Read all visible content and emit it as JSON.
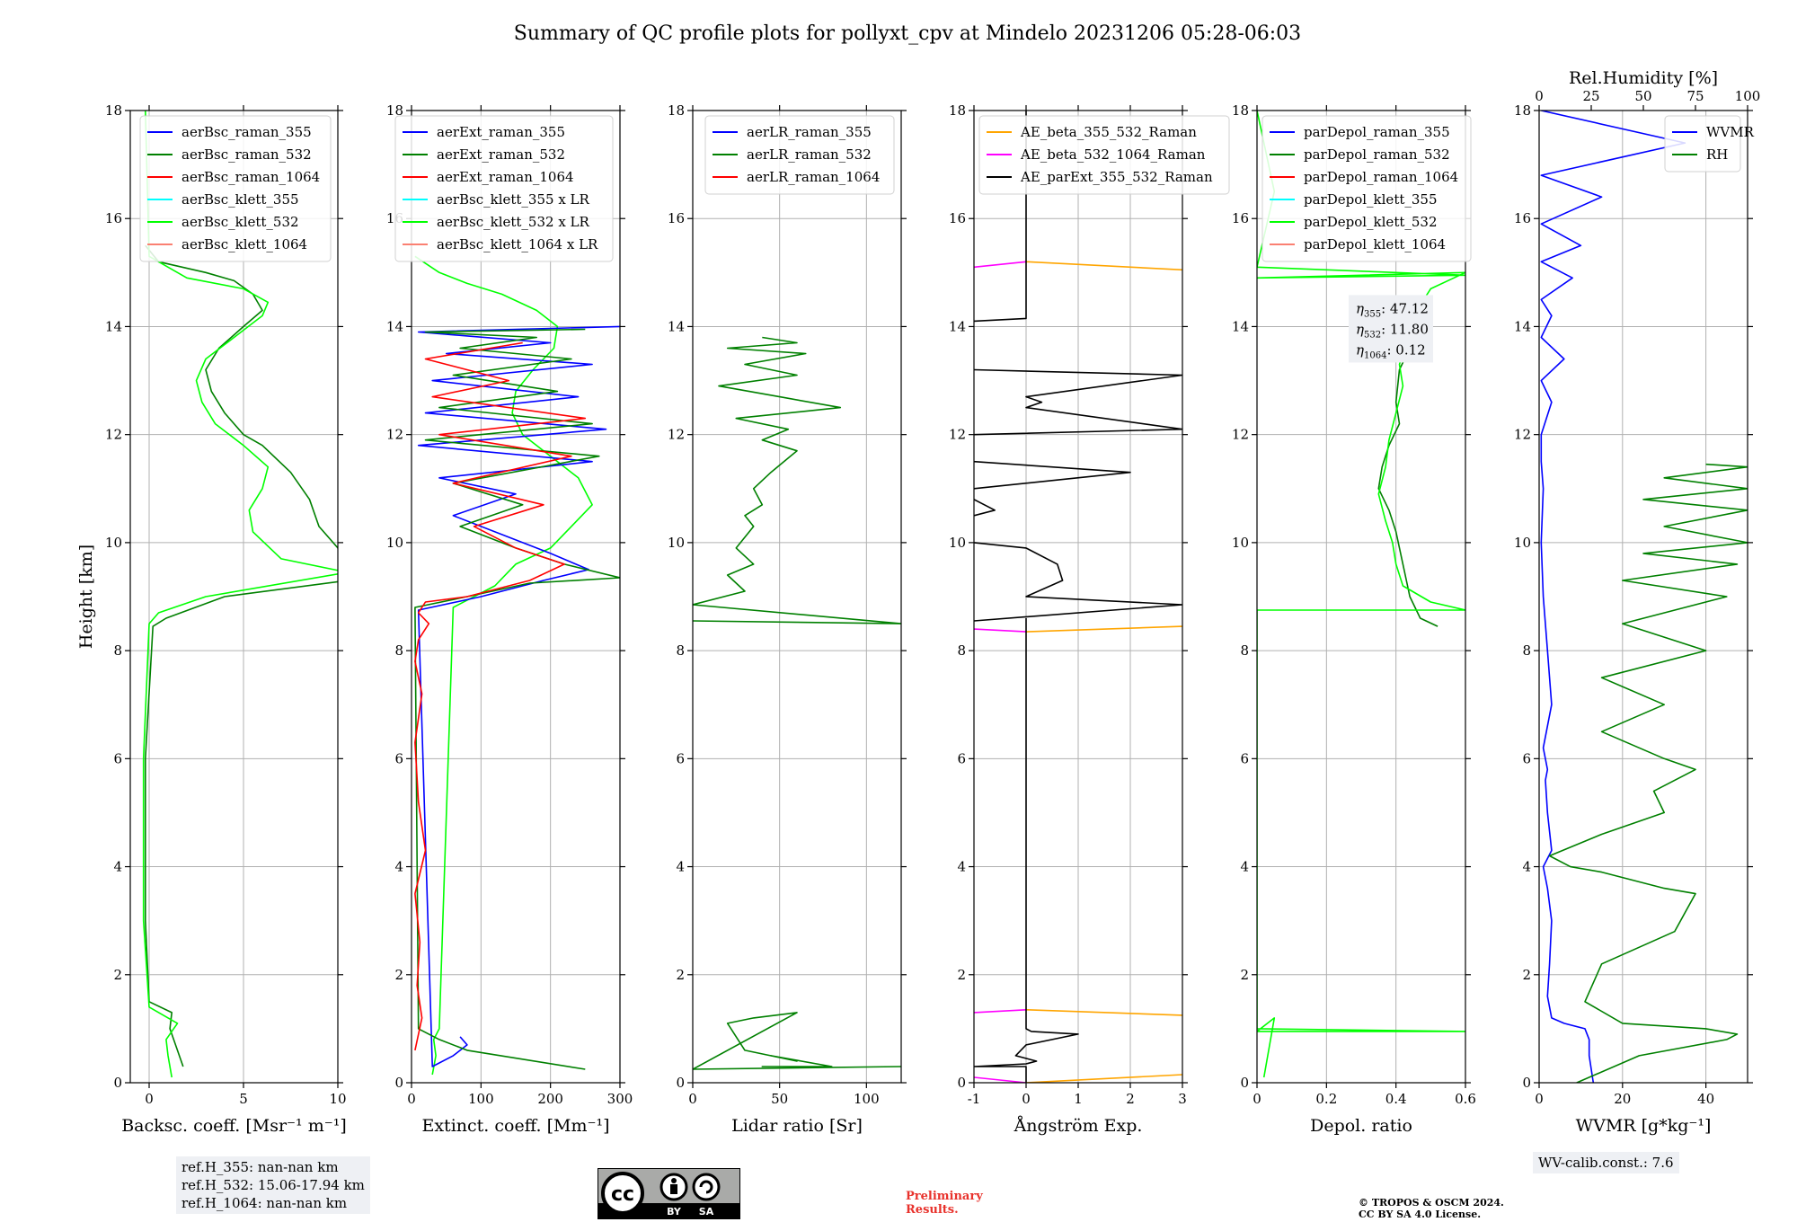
{
  "title": "Summary of QC profile plots for pollyxt_cpv at Mindelo 20231206 05:28-06:03",
  "colors": {
    "blue": "#0000ff",
    "green": "#008000",
    "red": "#ff0000",
    "cyan": "#00ffff",
    "lime": "#00ff00",
    "salmon": "#fa8072",
    "orange": "#ffa500",
    "magenta": "#ff00ff",
    "black": "#000000",
    "grid": "#b0b0b0",
    "prelim": "#e8322c",
    "notebox": "#eef0f4"
  },
  "notes": {
    "ref_heights": [
      "ref.H_355: nan-nan km",
      "ref.H_532: 15.06-17.94 km",
      "ref.H_1064: nan-nan km"
    ],
    "wv_calib": "WV-calib.const.: 7.6",
    "preliminary": [
      "Preliminary",
      "Results."
    ],
    "copyright": [
      "© TROPOS & OSCM 2024.",
      "CC BY SA 4.0 License."
    ],
    "cc_logo": {
      "icon": "cc-by-sa-license-icon",
      "labels": [
        "cc",
        "BY",
        "SA"
      ]
    }
  },
  "chart_data": [
    {
      "type": "line",
      "xlabel": "Backsc. coeff. [Msr⁻¹ m⁻¹]",
      "ylabel": "Height [km]",
      "xlim": [
        -1,
        10
      ],
      "ylim": [
        0,
        18
      ],
      "xticks": [
        0,
        5,
        10
      ],
      "yticks": [
        0,
        2,
        4,
        6,
        8,
        10,
        12,
        14,
        16,
        18
      ],
      "grid": true,
      "legend": "top-right",
      "legend_entries": [
        "aerBsc_raman_355",
        "aerBsc_raman_532",
        "aerBsc_raman_1064",
        "aerBsc_klett_355",
        "aerBsc_klett_532",
        "aerBsc_klett_1064"
      ],
      "series": [
        {
          "name": "aerBsc_raman_532",
          "color": "green",
          "x": [
            1.8,
            1.4,
            1.1,
            1.2,
            0.0,
            -0.2,
            -0.2,
            0.2,
            0.9,
            4,
            10.5,
            10,
            9,
            8.5,
            7.5,
            6,
            5,
            4,
            3.3,
            3,
            3.7,
            5,
            6,
            5.5,
            4.5,
            3,
            0.5,
            -0.2
          ],
          "y": [
            0.3,
            0.7,
            1.0,
            1.3,
            1.5,
            3,
            6,
            8.45,
            8.6,
            9.0,
            9.3,
            9.9,
            10.3,
            10.8,
            11.3,
            11.8,
            12.0,
            12.4,
            12.8,
            13.2,
            13.6,
            14.0,
            14.3,
            14.6,
            14.85,
            15.0,
            15.2,
            15.5
          ]
        },
        {
          "name": "aerBsc_klett_532",
          "color": "lime",
          "x": [
            1.2,
            1.0,
            0.9,
            1.5,
            0.0,
            -0.3,
            -0.3,
            0.0,
            0.5,
            3,
            10.5,
            7,
            5.5,
            5.3,
            6.0,
            6.3,
            5.0,
            3.5,
            2.8,
            2.5,
            3.0,
            4.5,
            6.0,
            6.3,
            5.0,
            2.0,
            0.0,
            -0.2
          ],
          "y": [
            0.1,
            0.5,
            0.8,
            1.1,
            1.4,
            3,
            6,
            8.5,
            8.7,
            9.0,
            9.45,
            9.7,
            10.2,
            10.6,
            11.0,
            11.4,
            11.8,
            12.2,
            12.6,
            13.0,
            13.4,
            13.8,
            14.2,
            14.45,
            14.7,
            14.9,
            15.3,
            18
          ]
        }
      ]
    },
    {
      "type": "line",
      "xlabel": "Extinct. coeff. [Mm⁻¹]",
      "xlim": [
        0,
        300
      ],
      "ylim": [
        0,
        18
      ],
      "xticks": [
        0,
        100,
        200,
        300
      ],
      "yticks": [
        0,
        2,
        4,
        6,
        8,
        10,
        12,
        14,
        16,
        18
      ],
      "grid": true,
      "legend": "top-right",
      "legend_entries": [
        "aerExt_raman_355",
        "aerExt_raman_532",
        "aerExt_raman_1064",
        "aerBsc_klett_355 x LR",
        "aerBsc_klett_532 x LR",
        "aerBsc_klett_1064 x LR"
      ],
      "series": [
        {
          "name": "aerBsc_klett_532 x LR",
          "color": "lime",
          "x": [
            30,
            35,
            32,
            40,
            60,
            120,
            150,
            200,
            230,
            260,
            240,
            200,
            160,
            145,
            150,
            175,
            205,
            210,
            180,
            130,
            80,
            40,
            5
          ],
          "y": [
            0.15,
            0.5,
            0.8,
            1.0,
            8.8,
            9.2,
            9.6,
            9.9,
            10.3,
            10.7,
            11.2,
            11.6,
            12.0,
            12.4,
            12.8,
            13.2,
            13.6,
            14.0,
            14.3,
            14.6,
            14.8,
            15.0,
            15.3
          ]
        },
        {
          "name": "aerExt_raman_355",
          "color": "blue",
          "x": [
            70,
            80,
            60,
            30,
            10,
            100,
            190,
            255,
            200,
            140,
            60,
            150,
            40,
            260,
            10,
            280,
            20,
            240,
            30,
            260,
            50,
            200,
            10,
            300
          ],
          "y": [
            0.85,
            0.7,
            0.5,
            0.3,
            8.75,
            9.0,
            9.3,
            9.5,
            9.8,
            10.1,
            10.5,
            10.9,
            11.2,
            11.5,
            11.8,
            12.1,
            12.4,
            12.7,
            13.0,
            13.3,
            13.5,
            13.7,
            13.9,
            14.0
          ]
        },
        {
          "name": "aerExt_raman_532",
          "color": "green",
          "x": [
            250,
            80,
            40,
            10,
            5,
            80,
            170,
            300,
            220,
            150,
            70,
            160,
            60,
            270,
            20,
            260,
            40,
            210,
            60,
            230,
            70,
            180,
            20,
            250
          ],
          "y": [
            0.25,
            0.6,
            0.8,
            1.0,
            8.8,
            9.0,
            9.25,
            9.35,
            9.6,
            9.9,
            10.3,
            10.7,
            11.1,
            11.6,
            11.9,
            12.2,
            12.5,
            12.8,
            13.1,
            13.4,
            13.6,
            13.8,
            13.9,
            13.95
          ]
        },
        {
          "name": "aerExt_raman_1064",
          "color": "red",
          "x": [
            5,
            15,
            8,
            12,
            5,
            20,
            10,
            5,
            15,
            5,
            10,
            25,
            10,
            20,
            80,
            170,
            220,
            150,
            90,
            190,
            60,
            230,
            40,
            250,
            30,
            140,
            20,
            160
          ],
          "y": [
            0.6,
            1.2,
            1.8,
            2.6,
            3.5,
            4.3,
            5.2,
            6.3,
            7.2,
            7.8,
            8.2,
            8.5,
            8.7,
            8.9,
            9.0,
            9.3,
            9.6,
            9.9,
            10.3,
            10.7,
            11.1,
            11.6,
            12.0,
            12.3,
            12.7,
            13.0,
            13.4,
            13.7
          ]
        }
      ]
    },
    {
      "type": "line",
      "xlabel": "Lidar ratio [Sr]",
      "xlim": [
        0,
        120
      ],
      "ylim": [
        0,
        18
      ],
      "xticks": [
        0,
        50,
        100
      ],
      "yticks": [
        0,
        2,
        4,
        6,
        8,
        10,
        12,
        14,
        16,
        18
      ],
      "grid": true,
      "legend": "top-right",
      "legend_entries": [
        "aerLR_raman_355",
        "aerLR_raman_532",
        "aerLR_raman_1064"
      ],
      "series": [
        {
          "name": "aerLR_raman_532",
          "color": "green",
          "x": [
            120,
            0,
            60,
            35,
            20,
            30,
            60,
            45,
            80,
            60,
            40,
            45
          ],
          "y": [
            0.3,
            0.25,
            1.3,
            1.2,
            1.1,
            0.6,
            0.4,
            0.5,
            0.3,
            0.3,
            0.3,
            0.3
          ]
        },
        {
          "name": "aerLR_raman_532_upper",
          "color": "green",
          "x": [
            0,
            120,
            0,
            30,
            20,
            35,
            25,
            35,
            30,
            40,
            35,
            45,
            60,
            40,
            55,
            25,
            85,
            50,
            15,
            60,
            30,
            65,
            20,
            60,
            40
          ],
          "y": [
            8.55,
            8.5,
            8.85,
            9.1,
            9.4,
            9.6,
            9.9,
            10.3,
            10.5,
            10.7,
            11.0,
            11.3,
            11.7,
            11.9,
            12.1,
            12.3,
            12.5,
            12.7,
            12.9,
            13.1,
            13.3,
            13.5,
            13.6,
            13.7,
            13.8
          ]
        }
      ]
    },
    {
      "type": "line",
      "xlabel": "Ångström Exp.",
      "xlim": [
        -1,
        3
      ],
      "ylim": [
        0,
        18
      ],
      "xticks": [
        -1,
        0,
        1,
        2,
        3
      ],
      "yticks": [
        0,
        2,
        4,
        6,
        8,
        10,
        12,
        14,
        16,
        18
      ],
      "grid": true,
      "legend": "top-left",
      "legend_entries": [
        "AE_beta_355_532_Raman",
        "AE_beta_532_1064_Raman",
        "AE_parExt_355_532_Raman"
      ],
      "series": [
        {
          "name": "AE_beta_355_532_Raman",
          "color": "orange",
          "x": [
            0,
            3,
            null,
            0,
            3,
            null,
            0,
            3,
            null,
            0,
            3
          ],
          "y": [
            0.0,
            0.15,
            null,
            1.35,
            1.25,
            null,
            8.35,
            8.45,
            null,
            15.2,
            15.05
          ]
        },
        {
          "name": "AE_beta_532_1064_Raman",
          "color": "magenta",
          "x": [
            -1,
            0,
            null,
            -1,
            0,
            null,
            -1,
            0,
            null,
            -1,
            0
          ],
          "y": [
            0.1,
            0.0,
            null,
            1.3,
            1.35,
            null,
            8.4,
            8.35,
            null,
            15.1,
            15.2
          ]
        },
        {
          "name": "AE_parExt_355_532_Raman",
          "color": "black",
          "x": [
            0,
            0,
            -1,
            0,
            0.2,
            -0.2,
            0.0,
            1.0,
            0.1,
            0,
            0,
            0,
            null,
            -1,
            3,
            0,
            0.7,
            0.6,
            0.0,
            -1,
            null,
            -1,
            -0.6,
            -1,
            null,
            -1,
            2.0,
            -1,
            null,
            -1,
            3,
            0,
            0.3,
            0,
            3,
            -1,
            null,
            -1,
            0,
            0,
            0
          ],
          "y": [
            0.0,
            0.3,
            0.3,
            0.35,
            0.4,
            0.5,
            0.7,
            0.9,
            0.95,
            1.0,
            8.55,
            8.6,
            null,
            8.55,
            8.85,
            9.0,
            9.3,
            9.6,
            9.9,
            10.0,
            null,
            10.5,
            10.6,
            10.8,
            null,
            11.5,
            11.3,
            11.0,
            null,
            12.0,
            12.1,
            12.5,
            12.6,
            12.7,
            13.1,
            13.2,
            null,
            14.1,
            14.15,
            14.5,
            18
          ]
        }
      ]
    },
    {
      "type": "line",
      "xlabel": "Depol. ratio",
      "xlim": [
        0,
        0.6
      ],
      "ylim": [
        0,
        18
      ],
      "xticks": [
        0.0,
        0.2,
        0.4,
        0.6
      ],
      "yticks": [
        0,
        2,
        4,
        6,
        8,
        10,
        12,
        14,
        16,
        18
      ],
      "grid": true,
      "legend": "top-left",
      "legend_entries": [
        "parDepol_raman_355",
        "parDepol_raman_532",
        "parDepol_raman_1064",
        "parDepol_klett_355",
        "parDepol_klett_532",
        "parDepol_klett_1064"
      ],
      "annotation": [
        {
          "symbol": "η",
          "sub": "355",
          "value": ": 47.12"
        },
        {
          "symbol": "η",
          "sub": "532",
          "value": ": 11.80"
        },
        {
          "symbol": "η",
          "sub": "1064",
          "value": ": 0.12"
        }
      ],
      "series": [
        {
          "name": "parDepol_raman_532",
          "color": "green",
          "x": [
            0.52,
            0.47,
            0.44,
            0.42,
            0.4,
            0.38,
            0.35,
            0.36,
            0.38,
            0.41,
            0.4,
            0.41,
            0.44,
            0.46
          ],
          "y": [
            8.45,
            8.6,
            9.0,
            9.6,
            10.2,
            10.6,
            11.0,
            11.4,
            11.8,
            12.2,
            12.6,
            13.2,
            13.6,
            14.0
          ]
        },
        {
          "name": "parDepol_klett_532",
          "color": "lime",
          "x": [
            0.02,
            0.05,
            0.0,
            0.6,
            0.0,
            0.0,
            0.6,
            0.5,
            0.42,
            0.4,
            0.39,
            0.37,
            0.35,
            0.37,
            0.38,
            0.4,
            0.42,
            0.41,
            0.43,
            0.45,
            0.47,
            0.5,
            0.6,
            0.0,
            0.6,
            0.0,
            0.05,
            0.0
          ],
          "y": [
            0.1,
            1.2,
            0.95,
            0.95,
            1.0,
            8.75,
            8.75,
            8.9,
            9.2,
            9.6,
            10.0,
            10.4,
            10.9,
            11.4,
            11.9,
            12.4,
            12.9,
            13.3,
            13.7,
            14.1,
            14.4,
            14.7,
            15.0,
            14.9,
            14.95,
            15.1,
            16.5,
            18
          ]
        }
      ]
    },
    {
      "type": "line",
      "xlabel": "WVMR [g*kg⁻¹]",
      "x2label": "Rel.Humidity [%]",
      "xlim": [
        0,
        50
      ],
      "x2lim": [
        0,
        100
      ],
      "ylim": [
        0,
        18
      ],
      "xticks": [
        0,
        20,
        40
      ],
      "x2ticks": [
        0,
        25,
        50,
        75,
        100
      ],
      "yticks": [
        0,
        2,
        4,
        6,
        8,
        10,
        12,
        14,
        16,
        18
      ],
      "grid": true,
      "legend": "top-right",
      "legend_entries": [
        "WVMR",
        "RH"
      ],
      "series": [
        {
          "name": "WVMR",
          "color": "blue",
          "x": [
            13,
            12,
            12,
            11,
            6,
            3,
            2,
            2.5,
            3,
            2,
            1,
            3,
            2,
            1.5,
            2,
            1,
            3,
            2,
            1,
            0.5,
            1,
            0.5,
            0.5,
            3,
            0.5,
            6,
            0.5,
            3,
            0.5,
            8,
            0.5,
            10,
            0.5,
            15,
            0.5,
            35,
            0.5
          ],
          "y": [
            0,
            0.5,
            0.8,
            1.0,
            1.1,
            1.2,
            1.6,
            2.2,
            3.0,
            3.6,
            4.0,
            4.3,
            5.0,
            5.6,
            5.8,
            6.2,
            7.0,
            8.0,
            9.0,
            10.0,
            11.0,
            11.5,
            12.0,
            12.6,
            13.0,
            13.4,
            13.8,
            14.2,
            14.5,
            14.9,
            15.2,
            15.5,
            15.9,
            16.4,
            16.8,
            17.4,
            18
          ]
        },
        {
          "name": "RH",
          "color": "green",
          "x2": [
            18,
            48,
            90,
            95,
            80,
            40,
            22,
            30,
            65,
            75,
            60,
            30,
            15,
            5,
            30,
            60,
            55,
            75,
            60,
            30,
            60,
            30,
            80,
            40,
            90,
            40,
            95,
            50,
            100,
            60,
            100,
            50,
            100,
            60,
            100,
            80
          ],
          "y": [
            0,
            0.5,
            0.8,
            0.9,
            1.0,
            1.1,
            1.5,
            2.2,
            2.8,
            3.5,
            3.6,
            3.9,
            4.0,
            4.2,
            4.6,
            5.0,
            5.4,
            5.8,
            6.0,
            6.5,
            7.0,
            7.5,
            8.0,
            8.5,
            9.0,
            9.3,
            9.6,
            9.8,
            10.0,
            10.3,
            10.6,
            10.8,
            11.0,
            11.2,
            11.4,
            11.45
          ]
        }
      ]
    }
  ]
}
